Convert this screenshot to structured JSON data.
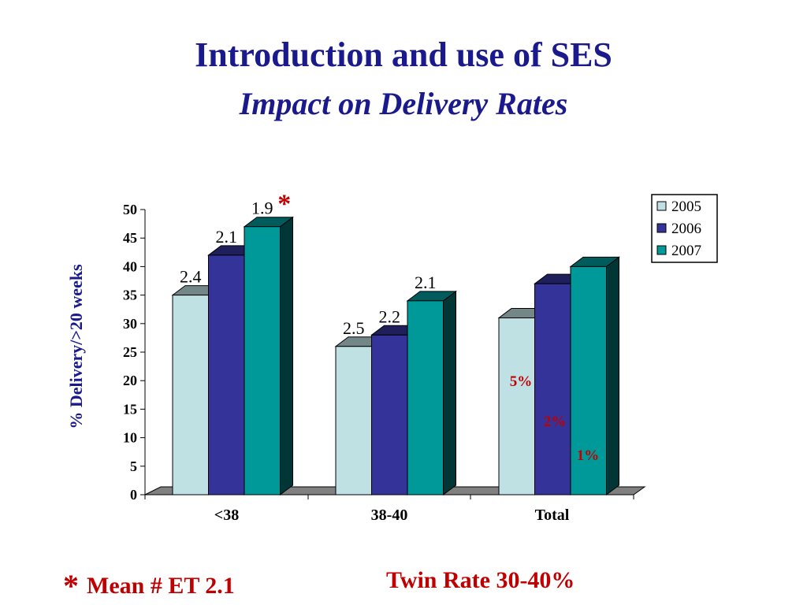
{
  "title": "Introduction and use of SES",
  "subtitle": "Impact on Delivery Rates",
  "chart_data": {
    "type": "bar",
    "categories": [
      "<38",
      "38-40",
      "Total"
    ],
    "series": [
      {
        "name": "2005",
        "values": [
          35,
          26,
          31
        ]
      },
      {
        "name": "2006",
        "values": [
          42,
          28,
          37
        ]
      },
      {
        "name": "2007",
        "values": [
          47,
          34,
          40
        ]
      }
    ],
    "bar_labels": [
      [
        "2.4",
        "2.1",
        "1.9"
      ],
      [
        "2.5",
        "2.2",
        "2.1"
      ]
    ],
    "total_labels": [
      "5%",
      "2%",
      "1%"
    ],
    "star_marker": "*",
    "ylabel": "% Delivery/>20 weeks",
    "xlabel": "",
    "ylim": [
      0,
      50
    ],
    "yticks": [
      0,
      5,
      10,
      15,
      20,
      25,
      30,
      35,
      40,
      45,
      50
    ],
    "legend_position": "top-right",
    "grid": false,
    "three_d": true,
    "colors": {
      "2005": "#bfe1e3",
      "2006": "#333399",
      "2007": "#009999",
      "floor": "#808080",
      "accent_red": "#c00000",
      "title_blue": "#1a1a8c"
    }
  },
  "footer": {
    "star": "*",
    "left": "Mean # ET 2.1",
    "right": "Twin Rate 30-40%"
  }
}
